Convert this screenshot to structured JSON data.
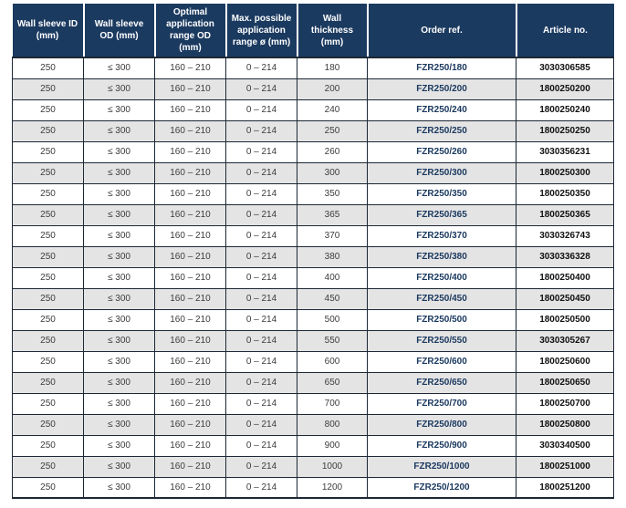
{
  "table": {
    "columns": [
      {
        "label": "Wall sleeve ID (mm)"
      },
      {
        "label": "Wall sleeve OD (mm)"
      },
      {
        "label": "Optimal application range OD (mm)"
      },
      {
        "label": "Max. possible application range ø (mm)"
      },
      {
        "label": "Wall thickness (mm)"
      },
      {
        "label": "Order ref."
      },
      {
        "label": "Article no."
      }
    ],
    "rows": [
      [
        "250",
        "≤ 300",
        "160 – 210",
        "0 – 214",
        "180",
        "FZR250/180",
        "3030306585"
      ],
      [
        "250",
        "≤ 300",
        "160 – 210",
        "0 – 214",
        "200",
        "FZR250/200",
        "1800250200"
      ],
      [
        "250",
        "≤ 300",
        "160 – 210",
        "0 – 214",
        "240",
        "FZR250/240",
        "1800250240"
      ],
      [
        "250",
        "≤ 300",
        "160 – 210",
        "0 – 214",
        "250",
        "FZR250/250",
        "1800250250"
      ],
      [
        "250",
        "≤ 300",
        "160 – 210",
        "0 – 214",
        "260",
        "FZR250/260",
        "3030356231"
      ],
      [
        "250",
        "≤ 300",
        "160 – 210",
        "0 – 214",
        "300",
        "FZR250/300",
        "1800250300"
      ],
      [
        "250",
        "≤ 300",
        "160 – 210",
        "0 – 214",
        "350",
        "FZR250/350",
        "1800250350"
      ],
      [
        "250",
        "≤ 300",
        "160 – 210",
        "0 – 214",
        "365",
        "FZR250/365",
        "1800250365"
      ],
      [
        "250",
        "≤ 300",
        "160 – 210",
        "0 – 214",
        "370",
        "FZR250/370",
        "3030326743"
      ],
      [
        "250",
        "≤ 300",
        "160 – 210",
        "0 – 214",
        "380",
        "FZR250/380",
        "3030336328"
      ],
      [
        "250",
        "≤ 300",
        "160 – 210",
        "0 – 214",
        "400",
        "FZR250/400",
        "1800250400"
      ],
      [
        "250",
        "≤ 300",
        "160 – 210",
        "0 – 214",
        "450",
        "FZR250/450",
        "1800250450"
      ],
      [
        "250",
        "≤ 300",
        "160 – 210",
        "0 – 214",
        "500",
        "FZR250/500",
        "1800250500"
      ],
      [
        "250",
        "≤ 300",
        "160 – 210",
        "0 – 214",
        "550",
        "FZR250/550",
        "3030305267"
      ],
      [
        "250",
        "≤ 300",
        "160 – 210",
        "0 – 214",
        "600",
        "FZR250/600",
        "1800250600"
      ],
      [
        "250",
        "≤ 300",
        "160 – 210",
        "0 – 214",
        "650",
        "FZR250/650",
        "1800250650"
      ],
      [
        "250",
        "≤ 300",
        "160 – 210",
        "0 – 214",
        "700",
        "FZR250/700",
        "1800250700"
      ],
      [
        "250",
        "≤ 300",
        "160 – 210",
        "0 – 214",
        "800",
        "FZR250/800",
        "1800250800"
      ],
      [
        "250",
        "≤ 300",
        "160 – 210",
        "0 – 214",
        "900",
        "FZR250/900",
        "3030340500"
      ],
      [
        "250",
        "≤ 300",
        "160 – 210",
        "0 – 214",
        "1000",
        "FZR250/1000",
        "1800251000"
      ],
      [
        "250",
        "≤ 300",
        "160 – 210",
        "0 – 214",
        "1200",
        "FZR250/1200",
        "1800251200"
      ]
    ],
    "cell_names": [
      "wall-sleeve-id-cell",
      "wall-sleeve-od-cell",
      "optimal-application-range-cell",
      "max-application-range-cell",
      "wall-thickness-cell",
      "order-ref-cell",
      "article-no-cell"
    ]
  },
  "colors": {
    "header_bg": "#1B3A60",
    "alt_row_bg": "#E5E4E4",
    "grid_border": "#1C2836",
    "header_text": "#FFFFFF",
    "data_text": "#3C3C3C",
    "order_ref_text": "#1B3A60",
    "article_text": "#111111"
  }
}
